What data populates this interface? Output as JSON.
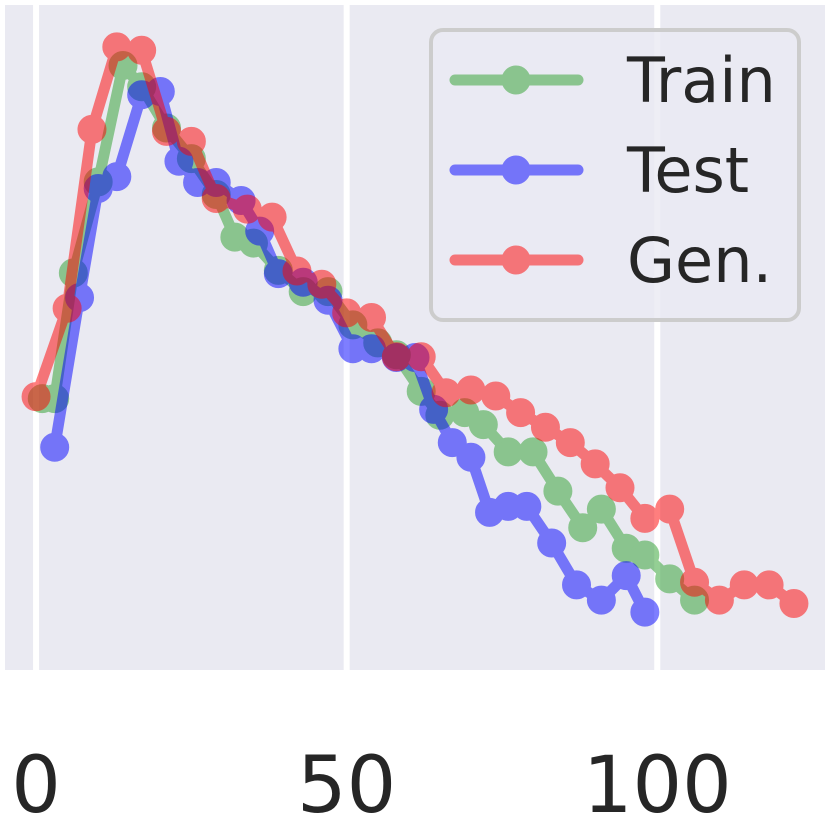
{
  "chart_data": {
    "type": "line",
    "title": "",
    "xlabel": "",
    "ylabel": "",
    "xlim": [
      -5,
      127
    ],
    "ylim": [
      0,
      1
    ],
    "x_ticks": [
      0,
      50,
      100
    ],
    "x_tick_labels": [
      "0",
      "50",
      "100"
    ],
    "grid": true,
    "legend": {
      "position": "top-right",
      "entries": [
        "Train",
        "Test",
        "Gen."
      ]
    },
    "series": [
      {
        "name": "Train",
        "color": "#2ca02c",
        "x": [
          1,
          3,
          6,
          10,
          14,
          17,
          21,
          25,
          29,
          32,
          35,
          39,
          43,
          47,
          51,
          55,
          58,
          62,
          65,
          69,
          72,
          76,
          80,
          84,
          88,
          91,
          95,
          98,
          102,
          106
        ],
        "y": [
          0.408,
          0.408,
          0.597,
          0.734,
          0.909,
          0.877,
          0.815,
          0.769,
          0.715,
          0.651,
          0.642,
          0.601,
          0.569,
          0.569,
          0.519,
          0.492,
          0.474,
          0.419,
          0.383,
          0.387,
          0.369,
          0.328,
          0.328,
          0.269,
          0.214,
          0.242,
          0.183,
          0.173,
          0.137,
          0.105
        ]
      },
      {
        "name": "Test",
        "color": "#0000ff",
        "x": [
          3,
          7,
          10,
          13,
          17,
          20,
          23,
          26,
          29,
          33,
          36,
          39,
          43,
          47,
          51,
          54,
          58,
          61,
          64,
          67,
          70,
          73,
          76,
          79,
          83,
          87,
          91,
          95,
          98
        ],
        "y": [
          0.335,
          0.56,
          0.724,
          0.742,
          0.865,
          0.87,
          0.765,
          0.733,
          0.733,
          0.706,
          0.66,
          0.596,
          0.583,
          0.556,
          0.483,
          0.483,
          0.47,
          0.47,
          0.392,
          0.342,
          0.32,
          0.237,
          0.246,
          0.246,
          0.191,
          0.128,
          0.105,
          0.142,
          0.087
        ]
      },
      {
        "name": "Gen.",
        "color": "#ff0000",
        "x": [
          0,
          5,
          9,
          13,
          17,
          21,
          25,
          29,
          34,
          38,
          42,
          46,
          50,
          54,
          58,
          62,
          66,
          70,
          74,
          78,
          82,
          86,
          90,
          94,
          98,
          102,
          106,
          110,
          114,
          118,
          122
        ],
        "y": [
          0.411,
          0.544,
          0.813,
          0.937,
          0.932,
          0.81,
          0.795,
          0.709,
          0.693,
          0.681,
          0.6,
          0.58,
          0.537,
          0.53,
          0.471,
          0.471,
          0.417,
          0.421,
          0.412,
          0.387,
          0.365,
          0.342,
          0.31,
          0.274,
          0.228,
          0.242,
          0.132,
          0.105,
          0.128,
          0.128,
          0.1
        ]
      }
    ]
  }
}
